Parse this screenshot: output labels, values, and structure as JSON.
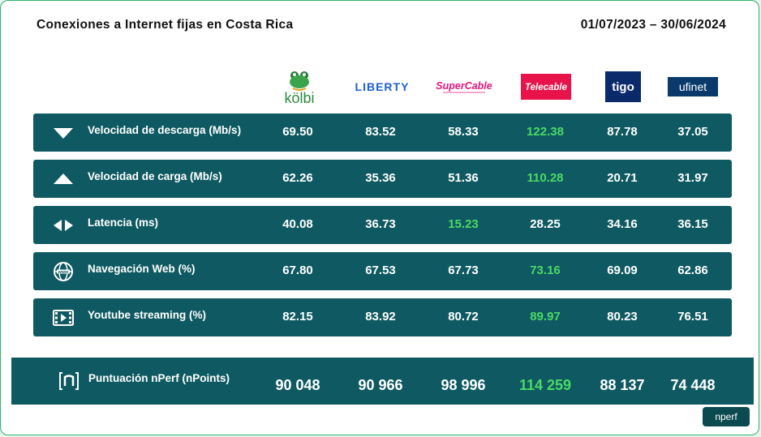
{
  "header": {
    "title": "Conexiones a Internet fijas en Costa Rica",
    "period": "01/07/2023 – 30/06/2024"
  },
  "providers": [
    {
      "name": "kölbi",
      "color": "#2a8a3e"
    },
    {
      "name": "LIBERTY",
      "color": "#1d5fd0"
    },
    {
      "name": "SuperCable",
      "color": "#e0157a"
    },
    {
      "name": "Telecable",
      "color": "#e8134a"
    },
    {
      "name": "tigo",
      "color": "#0a2a6b"
    },
    {
      "name": "ufinet",
      "color": "#0a3a6b"
    }
  ],
  "metrics": [
    {
      "label": "Velocidad de descarga  (Mb/s)",
      "icon": "download-arrow-icon",
      "values": [
        "69.50",
        "83.52",
        "58.33",
        "122.38",
        "87.78",
        "37.05"
      ],
      "best_index": 3
    },
    {
      "label": "Velocidad de carga  (Mb/s)",
      "icon": "upload-arrow-icon",
      "values": [
        "62.26",
        "35.36",
        "51.36",
        "110.28",
        "20.71",
        "31.97"
      ],
      "best_index": 3
    },
    {
      "label": "Latencia (ms)",
      "icon": "latency-arrows-icon",
      "values": [
        "40.08",
        "36.73",
        "15.23",
        "28.25",
        "34.16",
        "36.15"
      ],
      "best_index": 2
    },
    {
      "label": "Navegación Web (%)",
      "icon": "web-globe-icon",
      "values": [
        "67.80",
        "67.53",
        "67.73",
        "73.16",
        "69.09",
        "62.86"
      ],
      "best_index": 3
    },
    {
      "label": "Youtube streaming  (%)",
      "icon": "video-film-icon",
      "values": [
        "82.15",
        "83.92",
        "80.72",
        "89.97",
        "80.23",
        "76.51"
      ],
      "best_index": 3
    }
  ],
  "score": {
    "label": "Puntuación nPerf (nPoints)",
    "icon": "nperf-logo-icon",
    "values": [
      "90 048",
      "90 966",
      "98 996",
      "114 259",
      "88 137",
      "74 448"
    ],
    "best_index": 3
  },
  "colors": {
    "row_bg": "#0f5a62",
    "best": "#4cd964",
    "value": "#ffffff"
  },
  "brand": {
    "name": "nperf"
  }
}
